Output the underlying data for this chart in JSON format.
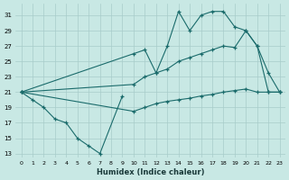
{
  "background_color": "#c8e8e4",
  "grid_color": "#a8ccca",
  "line_color": "#1a6b6b",
  "xlabel": "Humidex (Indice chaleur)",
  "xlim": [
    -0.5,
    23.5
  ],
  "ylim": [
    12.5,
    32.5
  ],
  "xticks": [
    0,
    1,
    2,
    3,
    4,
    5,
    6,
    7,
    8,
    9,
    10,
    11,
    12,
    13,
    14,
    15,
    16,
    17,
    18,
    19,
    20,
    21,
    22,
    23
  ],
  "yticks": [
    13,
    15,
    17,
    19,
    21,
    23,
    25,
    27,
    29,
    31
  ],
  "curve1_x": [
    0,
    1,
    2,
    3,
    4,
    5,
    6,
    7,
    9
  ],
  "curve1_y": [
    21.0,
    20.0,
    19.0,
    17.5,
    17.0,
    15.0,
    14.0,
    13.0,
    20.5
  ],
  "curve2_x": [
    0,
    10,
    11,
    12,
    13,
    14,
    15,
    16,
    17,
    18,
    19,
    20,
    21,
    22,
    23
  ],
  "curve2_y": [
    21.0,
    26.0,
    26.5,
    23.5,
    27.0,
    31.5,
    29.0,
    31.0,
    31.5,
    31.5,
    29.5,
    29.0,
    27.0,
    23.5,
    21.0
  ],
  "curve3_x": [
    0,
    10,
    11,
    12,
    13,
    14,
    15,
    16,
    17,
    18,
    19,
    20,
    21,
    22,
    23
  ],
  "curve3_y": [
    21.0,
    22.0,
    23.0,
    23.5,
    24.0,
    25.0,
    25.5,
    26.0,
    26.5,
    27.0,
    26.8,
    29.0,
    27.0,
    21.0,
    21.0
  ],
  "curve4_x": [
    0,
    10,
    11,
    12,
    13,
    14,
    15,
    16,
    17,
    18,
    19,
    20,
    21,
    22,
    23
  ],
  "curve4_y": [
    21.0,
    18.5,
    19.0,
    19.5,
    19.8,
    20.0,
    20.2,
    20.5,
    20.7,
    21.0,
    21.2,
    21.4,
    21.0,
    21.0,
    21.0
  ]
}
